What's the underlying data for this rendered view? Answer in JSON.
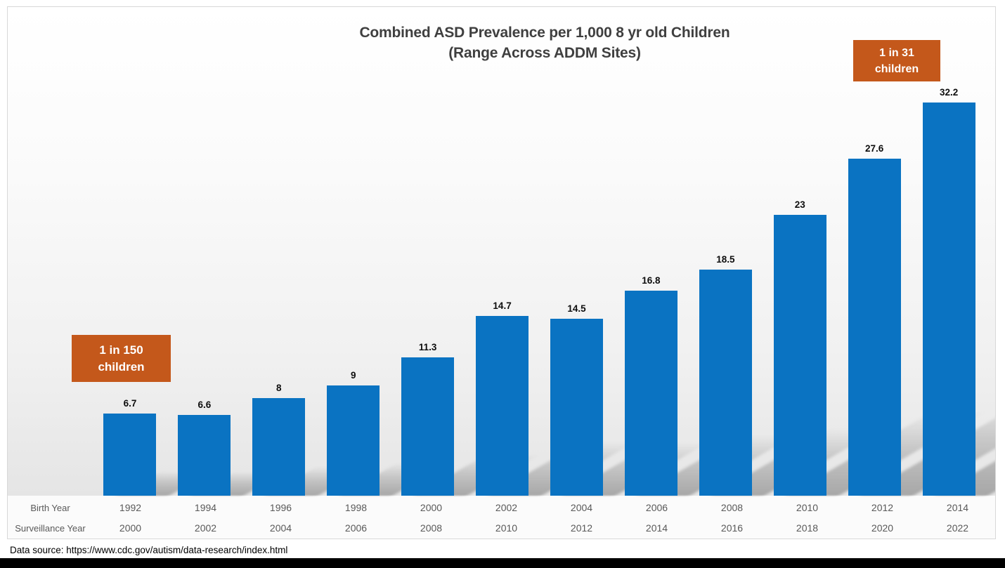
{
  "title": {
    "line1": "Combined ASD Prevalence per 1,000 8 yr old Children",
    "line2": "(Range Across ADDM Sites)"
  },
  "callouts": {
    "left": {
      "line1": "1 in 150",
      "line2": "children"
    },
    "right": {
      "line1": "1 in 31",
      "line2": "children"
    }
  },
  "chart_data": {
    "type": "bar",
    "title": "Combined ASD Prevalence per 1,000 8 yr old Children (Range Across ADDM Sites)",
    "values": [
      6.7,
      6.6,
      8,
      9,
      11.3,
      14.7,
      14.5,
      16.8,
      18.5,
      23,
      27.6,
      32.2
    ],
    "value_labels": [
      "6.7",
      "6.6",
      "8",
      "9",
      "11.3",
      "14.7",
      "14.5",
      "16.8",
      "18.5",
      "23",
      "27.6",
      "32.2"
    ],
    "birth_years": [
      "1992",
      "1994",
      "1996",
      "1998",
      "2000",
      "2002",
      "2004",
      "2006",
      "2008",
      "2010",
      "2012",
      "2014"
    ],
    "surveillance_years": [
      "2000",
      "2002",
      "2004",
      "2006",
      "2008",
      "2010",
      "2012",
      "2014",
      "2016",
      "2018",
      "2020",
      "2022"
    ],
    "row_labels": {
      "birth": "Birth Year",
      "surveillance": "Surveillance Year"
    },
    "ylim": [
      0,
      40
    ],
    "grid": false,
    "legend": "none",
    "bar_color": "#0A73C2",
    "annotation_box_color": "#C4581B",
    "annotations": [
      "1 in 150 children",
      "1 in 31 children"
    ]
  },
  "footer": {
    "data_source": "Data source: https://www.cdc.gov/autism/data-research/index.html"
  }
}
